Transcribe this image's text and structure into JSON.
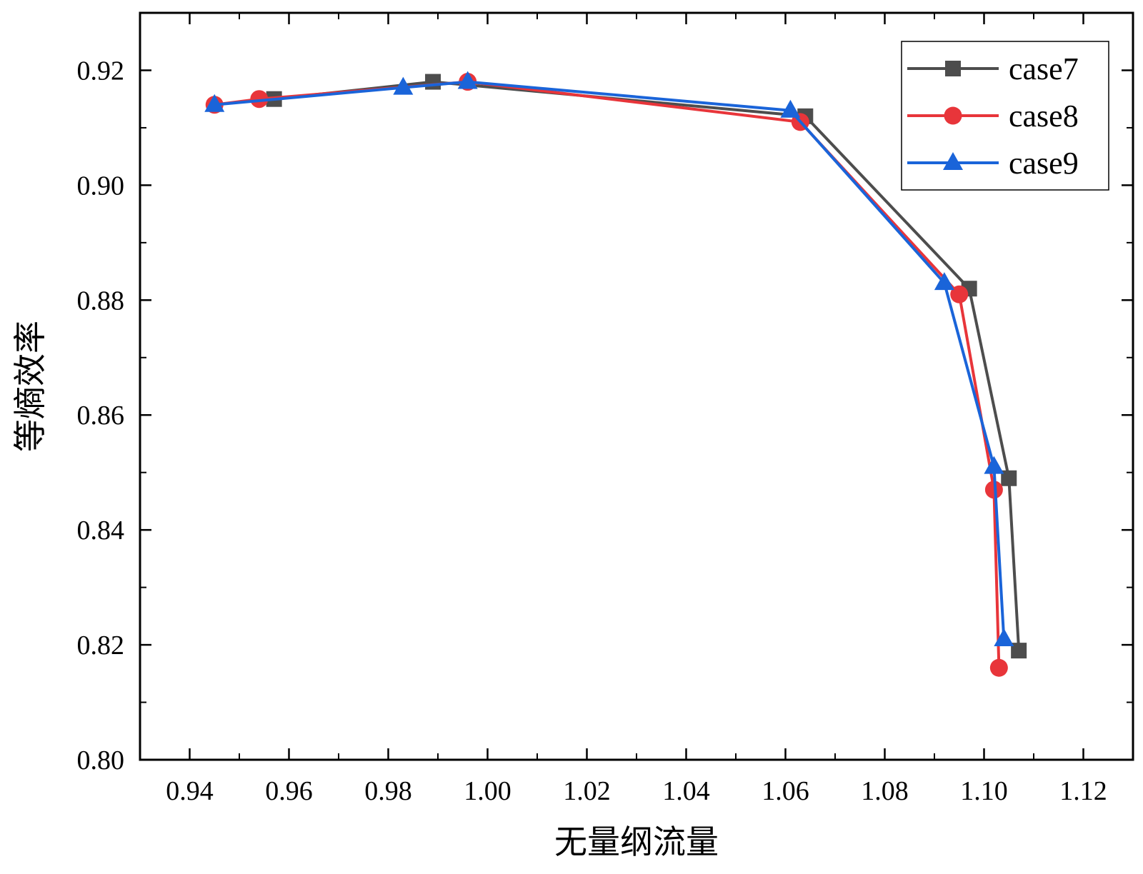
{
  "chart_data": {
    "type": "line",
    "xlabel": "无量纲流量",
    "ylabel": "等熵效率",
    "xlim": [
      0.93,
      1.13
    ],
    "ylim": [
      0.8,
      0.93
    ],
    "x_ticks": [
      "0.94",
      "0.96",
      "0.98",
      "1.00",
      "1.02",
      "1.04",
      "1.06",
      "1.08",
      "1.10",
      "1.12"
    ],
    "y_ticks": [
      "0.80",
      "0.82",
      "0.84",
      "0.86",
      "0.88",
      "0.90",
      "0.92"
    ],
    "grid": false,
    "legend_position": "top-right",
    "series": [
      {
        "name": "case7",
        "color": "#4d4d4d",
        "marker": "square",
        "x": [
          0.957,
          0.989,
          1.064,
          1.097,
          1.105,
          1.107
        ],
        "y": [
          0.915,
          0.918,
          0.912,
          0.882,
          0.849,
          0.819
        ]
      },
      {
        "name": "case8",
        "color": "#e8353a",
        "marker": "circle",
        "x": [
          0.945,
          0.954,
          0.996,
          1.063,
          1.095,
          1.102,
          1.103
        ],
        "y": [
          0.914,
          0.915,
          0.918,
          0.911,
          0.881,
          0.847,
          0.816
        ]
      },
      {
        "name": "case9",
        "color": "#1a64d9",
        "marker": "triangle",
        "x": [
          0.945,
          0.983,
          0.996,
          1.061,
          1.092,
          1.102,
          1.104
        ],
        "y": [
          0.914,
          0.917,
          0.918,
          0.913,
          0.883,
          0.851,
          0.821
        ]
      }
    ]
  }
}
